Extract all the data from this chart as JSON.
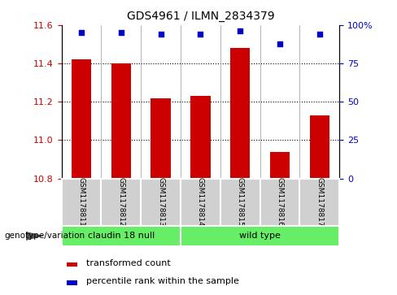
{
  "title": "GDS4961 / ILMN_2834379",
  "samples": [
    "GSM1178811",
    "GSM1178812",
    "GSM1178813",
    "GSM1178814",
    "GSM1178815",
    "GSM1178816",
    "GSM1178817"
  ],
  "transformed_counts": [
    11.42,
    11.4,
    11.22,
    11.23,
    11.48,
    10.94,
    11.13
  ],
  "percentile_ranks": [
    95,
    95,
    94,
    94,
    96,
    88,
    94
  ],
  "ylim_left": [
    10.8,
    11.6
  ],
  "yticks_left": [
    10.8,
    11.0,
    11.2,
    11.4,
    11.6
  ],
  "ylim_right": [
    0,
    100
  ],
  "yticks_right": [
    0,
    25,
    50,
    75,
    100
  ],
  "bar_color": "#cc0000",
  "dot_color": "#0000cc",
  "groups": [
    {
      "label": "claudin 18 null",
      "indices": [
        0,
        1,
        2
      ],
      "color": "#66ee66"
    },
    {
      "label": "wild type",
      "indices": [
        3,
        4,
        5,
        6
      ],
      "color": "#66ee66"
    }
  ],
  "group_label_prefix": "genotype/variation",
  "legend_bar_label": "transformed count",
  "legend_dot_label": "percentile rank within the sample",
  "label_color_left": "#cc0000",
  "label_color_right": "#0000cc",
  "bar_width": 0.5,
  "sample_box_color": "#d0d0d0",
  "separator_color": "#999999"
}
